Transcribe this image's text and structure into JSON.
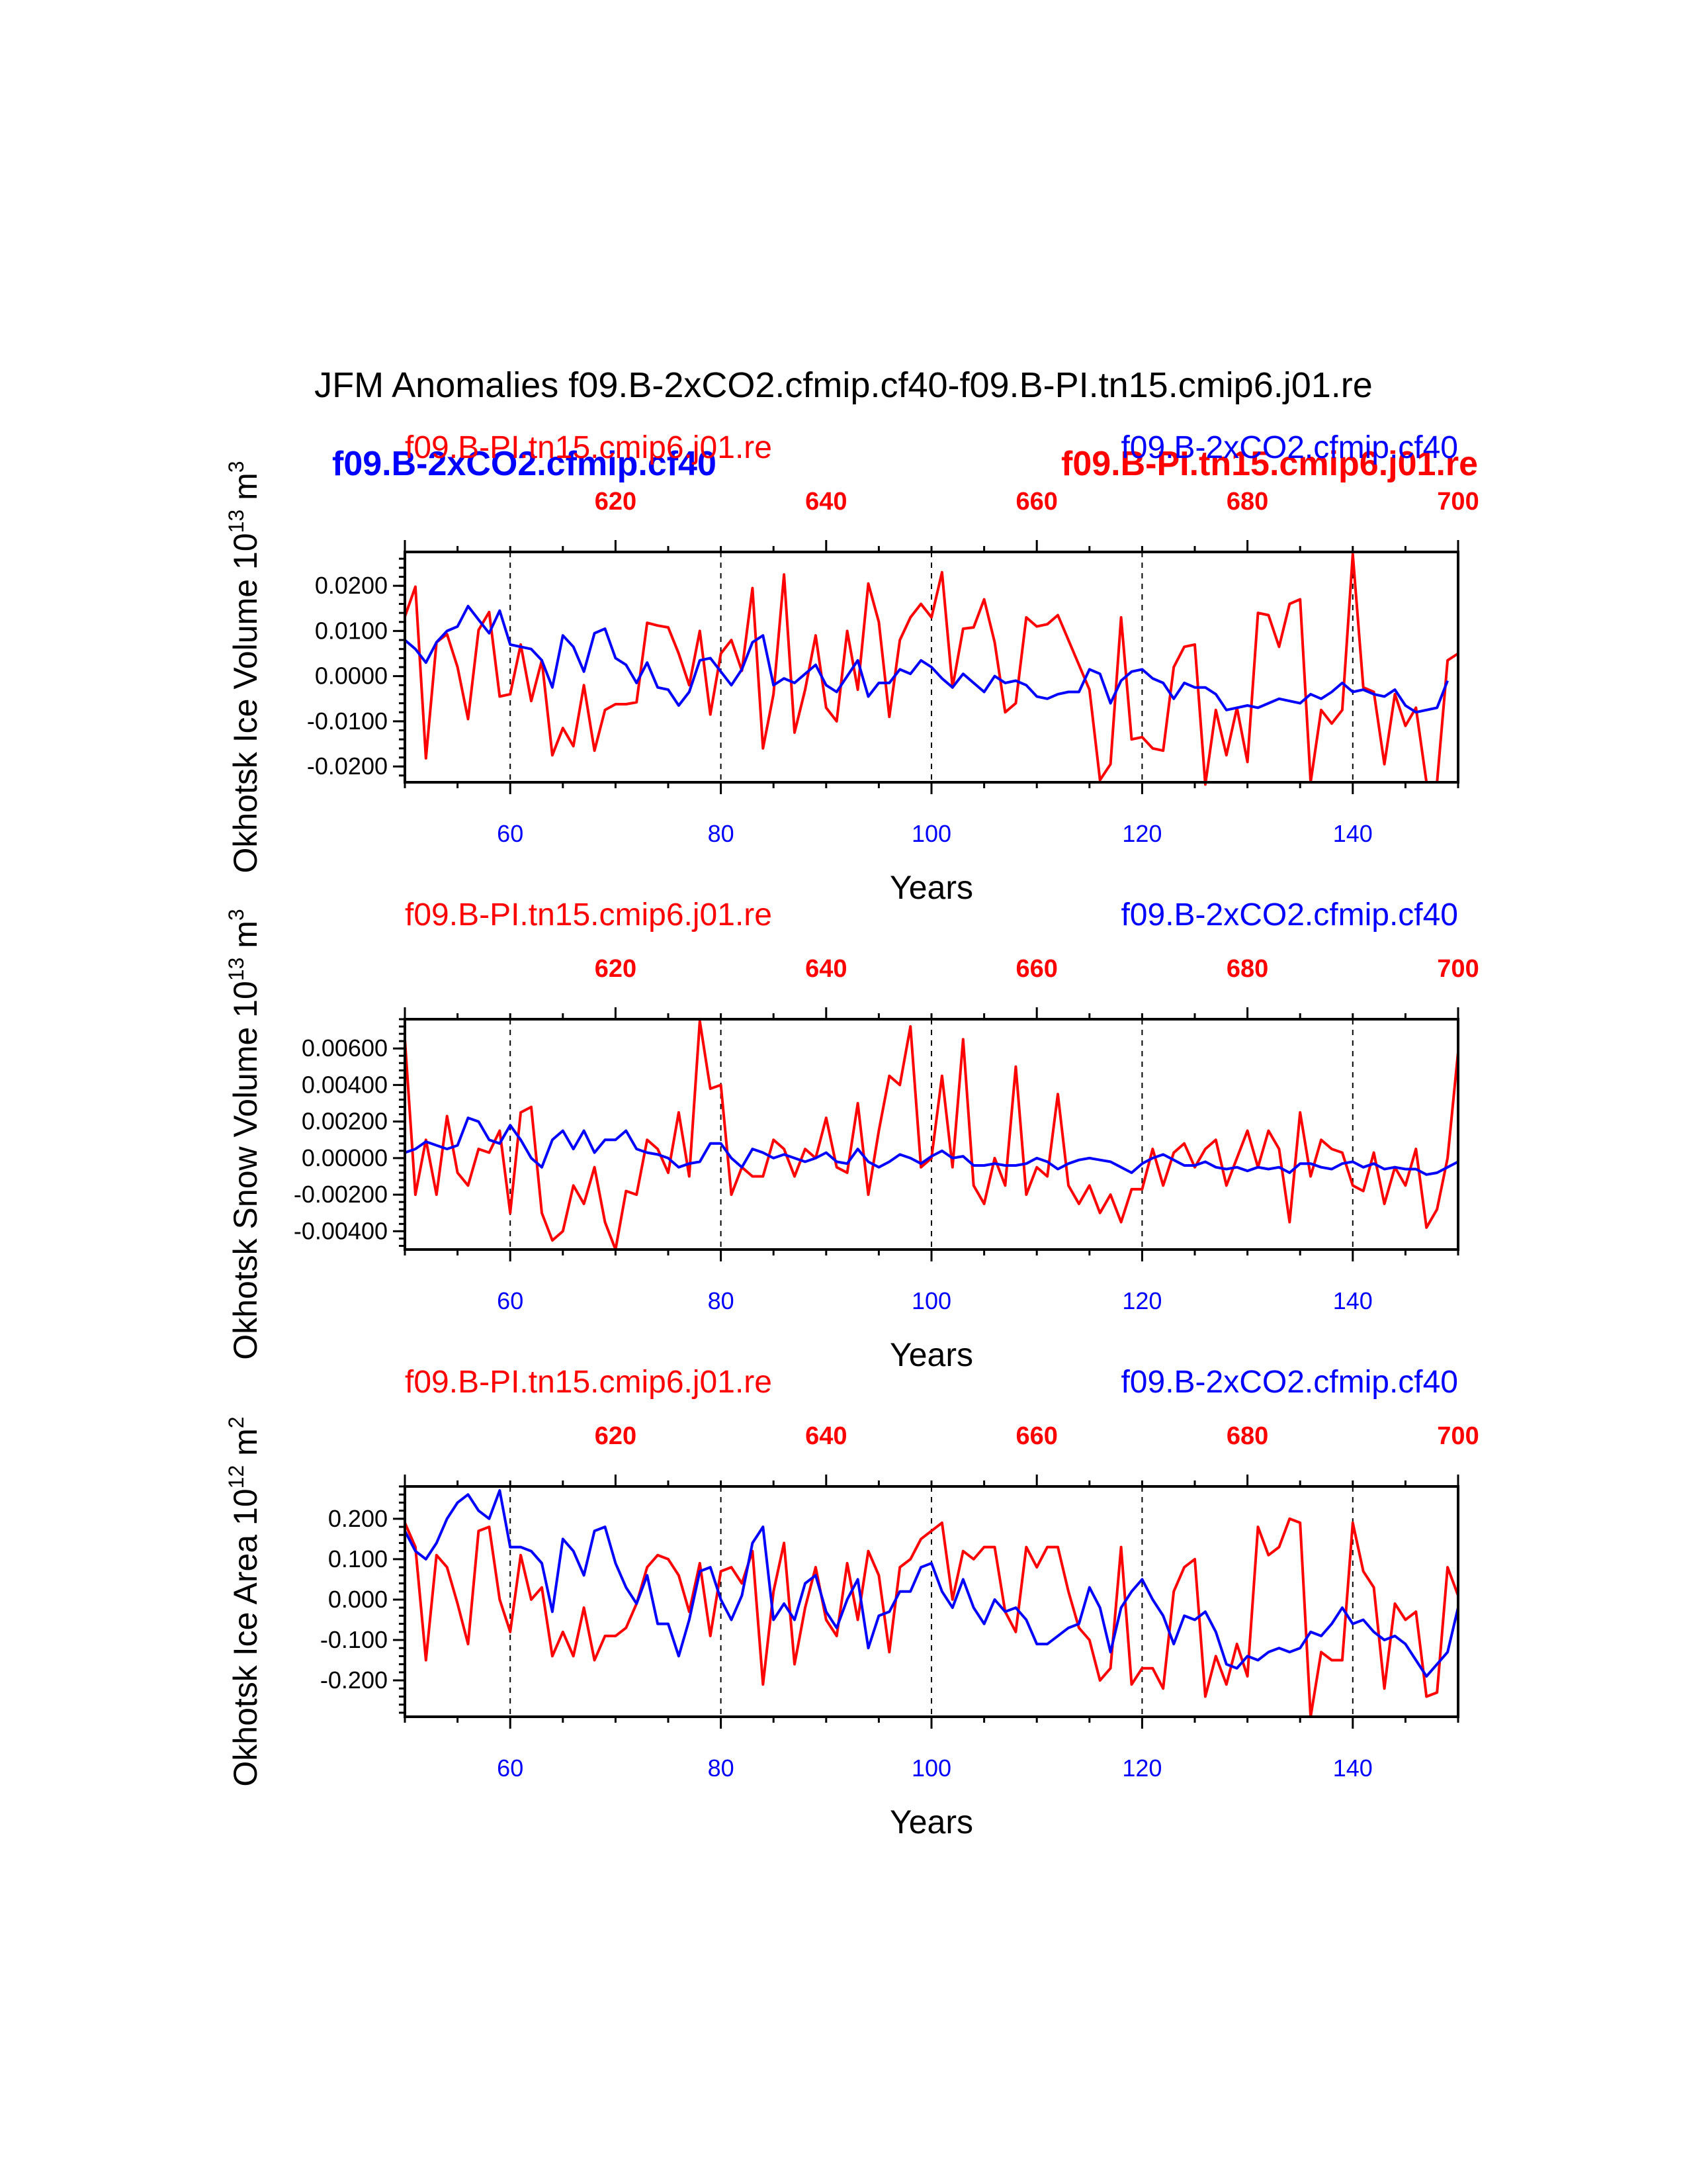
{
  "figure": {
    "title": "JFM Anomalies f09.B-2xCO2.cfmip.cf40-f09.B-PI.tn15.cmip6.j01.re",
    "extra_labels": {
      "blue_bold": "f09.B-2xCO2.cfmip.cf40",
      "red_bold": "f09.B-PI.tn15.cmip6.j01.re"
    }
  },
  "colors": {
    "pi": "#ff0000",
    "co2": "#0000ff",
    "axis": "#000000"
  },
  "chart_data": [
    {
      "type": "line",
      "name": "ice-volume",
      "title_left": "f09.B-PI.tn15.cmip6.j01.re",
      "title_right": "f09.B-2xCO2.cfmip.cf40",
      "ylabel_main": "Okhotsk Ice Volume 10",
      "ylabel_exp1": "13",
      "ylabel_unit": " m",
      "ylabel_exp2": "3",
      "xlabel": "Years",
      "xlim": [
        50,
        150
      ],
      "xlim_top": [
        600,
        700
      ],
      "ylim": [
        -0.0235,
        0.0275
      ],
      "yticks": [
        -0.02,
        -0.01,
        0.0,
        0.01,
        0.02
      ],
      "ytick_labels": [
        "-0.0200",
        "-0.0100",
        "0.0000",
        "0.0100",
        "0.0200"
      ],
      "xticks_bottom": [
        60,
        80,
        100,
        120,
        140
      ],
      "xtick_bottom_labels": [
        "60",
        "80",
        "100",
        "120",
        "140"
      ],
      "xticks_top": [
        620,
        640,
        660,
        680,
        700
      ],
      "xtick_top_labels": [
        "620",
        "640",
        "660",
        "680",
        "700"
      ],
      "vlines": [
        60,
        80,
        100,
        120,
        140
      ],
      "x_start": 50,
      "series": [
        {
          "name": "f09.B-PI.tn15.cmip6.j01.re",
          "color": "#ff0000",
          "values": [
            0.0132,
            0.0198,
            -0.0182,
            0.0075,
            0.0093,
            0.002,
            -0.0095,
            0.0102,
            0.0142,
            -0.0045,
            -0.004,
            0.007,
            -0.0055,
            0.0035,
            -0.0175,
            -0.0115,
            -0.0155,
            -0.002,
            -0.0165,
            -0.0075,
            -0.0062,
            -0.0062,
            -0.0058,
            0.0118,
            0.0112,
            0.0108,
            0.005,
            -0.002,
            0.01,
            -0.0085,
            0.005,
            0.008,
            0.0012,
            0.0195,
            -0.016,
            -0.004,
            0.0225,
            -0.0125,
            -0.003,
            0.009,
            -0.007,
            -0.01,
            0.01,
            -0.003,
            0.0205,
            0.012,
            -0.009,
            0.008,
            0.013,
            0.016,
            0.013,
            0.023,
            -0.0025,
            0.0105,
            0.0108,
            0.017,
            0.0075,
            -0.008,
            -0.006,
            0.013,
            0.011,
            0.0115,
            0.0135,
            0.008,
            0.0025,
            -0.003,
            -0.023,
            -0.0195,
            0.013,
            -0.014,
            -0.0135,
            -0.016,
            -0.0165,
            0.002,
            0.0065,
            0.007,
            -0.024,
            -0.0075,
            -0.0175,
            -0.007,
            -0.019,
            0.014,
            0.0135,
            0.0065,
            0.016,
            0.017,
            -0.0235,
            -0.0075,
            -0.0105,
            -0.0075,
            0.027,
            -0.0025,
            -0.0035,
            -0.0195,
            -0.004,
            -0.011,
            -0.007,
            -0.0235,
            -0.0235,
            0.0035,
            0.005
          ]
        },
        {
          "name": "f09.B-2xCO2.cfmip.cf40",
          "color": "#0000ff",
          "values": [
            0.008,
            0.006,
            0.003,
            0.0075,
            0.01,
            0.011,
            0.0155,
            0.0125,
            0.0095,
            0.0145,
            0.007,
            0.0065,
            0.006,
            0.0035,
            -0.0025,
            0.009,
            0.0065,
            0.001,
            0.0095,
            0.0105,
            0.004,
            0.0025,
            -0.0015,
            0.003,
            -0.0025,
            -0.003,
            -0.0065,
            -0.0035,
            0.0035,
            0.004,
            0.001,
            -0.002,
            0.0015,
            0.0075,
            0.009,
            -0.002,
            -0.0005,
            -0.0015,
            0.0005,
            0.0025,
            -0.002,
            -0.0035,
            0.0,
            0.0035,
            -0.0045,
            -0.0015,
            -0.0015,
            0.0015,
            0.0005,
            0.0035,
            0.002,
            -0.0005,
            -0.0025,
            0.0005,
            -0.0015,
            -0.0035,
            0.0,
            -0.0015,
            -0.001,
            -0.002,
            -0.0045,
            -0.005,
            -0.004,
            -0.0035,
            -0.0035,
            0.0015,
            0.0005,
            -0.006,
            -0.001,
            0.001,
            0.0015,
            -0.0005,
            -0.0015,
            -0.005,
            -0.0015,
            -0.0025,
            -0.0025,
            -0.004,
            -0.0075,
            -0.007,
            -0.0065,
            -0.007,
            -0.006,
            -0.005,
            -0.0055,
            -0.006,
            -0.004,
            -0.005,
            -0.0035,
            -0.0015,
            -0.0035,
            -0.003,
            -0.004,
            -0.0045,
            -0.003,
            -0.0065,
            -0.008,
            -0.0075,
            -0.007,
            -0.001
          ]
        }
      ]
    },
    {
      "type": "line",
      "name": "snow-volume",
      "title_left": "f09.B-PI.tn15.cmip6.j01.re",
      "title_right": "f09.B-2xCO2.cfmip.cf40",
      "ylabel_main": "Okhotsk Snow Volume 10",
      "ylabel_exp1": "13",
      "ylabel_unit": " m",
      "ylabel_exp2": "3",
      "xlabel": "Years",
      "xlim": [
        50,
        150
      ],
      "xlim_top": [
        600,
        700
      ],
      "ylim": [
        -0.005,
        0.0076
      ],
      "yticks": [
        -0.004,
        -0.002,
        0.0,
        0.002,
        0.004,
        0.006
      ],
      "ytick_labels": [
        "-0.00400",
        "-0.00200",
        "0.00000",
        "0.00200",
        "0.00400",
        "0.00600"
      ],
      "xticks_bottom": [
        60,
        80,
        100,
        120,
        140
      ],
      "xtick_bottom_labels": [
        "60",
        "80",
        "100",
        "120",
        "140"
      ],
      "xticks_top": [
        620,
        640,
        660,
        680,
        700
      ],
      "xtick_top_labels": [
        "620",
        "640",
        "660",
        "680",
        "700"
      ],
      "vlines": [
        60,
        80,
        100,
        120,
        140
      ],
      "x_start": 50,
      "series": [
        {
          "name": "f09.B-PI.tn15.cmip6.j01.re",
          "color": "#ff0000",
          "values": [
            0.0065,
            -0.002,
            0.001,
            -0.002,
            0.0023,
            -0.0008,
            -0.0015,
            0.0005,
            0.0003,
            0.0015,
            -0.003,
            0.0025,
            0.0028,
            -0.003,
            -0.0045,
            -0.004,
            -0.0015,
            -0.0025,
            -0.0005,
            -0.0035,
            -0.005,
            -0.0018,
            -0.002,
            0.001,
            0.0005,
            -0.0008,
            0.0025,
            -0.001,
            0.0075,
            0.0038,
            0.004,
            -0.002,
            -0.0005,
            -0.001,
            -0.001,
            0.001,
            0.0005,
            -0.001,
            0.0005,
            0.0,
            0.0022,
            -0.0005,
            -0.0008,
            0.003,
            -0.002,
            0.0015,
            0.0045,
            0.004,
            0.0072,
            -0.0005,
            0.0,
            0.0045,
            -0.0005,
            0.0065,
            -0.0015,
            -0.0025,
            0.0,
            -0.0015,
            0.005,
            -0.002,
            -0.0005,
            -0.001,
            0.0035,
            -0.0015,
            -0.0025,
            -0.0015,
            -0.003,
            -0.002,
            -0.0035,
            -0.0017,
            -0.0017,
            0.0005,
            -0.0015,
            0.0003,
            0.0008,
            -0.0005,
            0.0005,
            0.001,
            -0.0015,
            0.0,
            0.0015,
            -0.0005,
            0.0015,
            0.0005,
            -0.0035,
            0.0025,
            -0.001,
            0.001,
            0.0005,
            0.0003,
            -0.0015,
            -0.0018,
            0.0003,
            -0.0025,
            -0.0005,
            -0.0015,
            0.0005,
            -0.0038,
            -0.0028,
            0.0,
            0.0058
          ]
        },
        {
          "name": "f09.B-2xCO2.cfmip.cf40",
          "color": "#0000ff",
          "values": [
            0.0003,
            0.0005,
            0.0009,
            0.0007,
            0.0005,
            0.0007,
            0.0022,
            0.002,
            0.001,
            0.0008,
            0.0018,
            0.001,
            0.0,
            -0.0005,
            0.001,
            0.0015,
            0.0005,
            0.0015,
            0.0003,
            0.001,
            0.001,
            0.0015,
            0.0005,
            0.0003,
            0.0002,
            0.0,
            -0.0005,
            -0.0003,
            -0.0002,
            0.0008,
            0.0008,
            0.0,
            -0.0005,
            0.0005,
            0.0003,
            0.0,
            0.0002,
            0.0,
            -0.0002,
            0.0,
            0.0003,
            -0.0002,
            -0.0003,
            0.0005,
            -0.0002,
            -0.0005,
            -0.0002,
            0.0002,
            0.0,
            -0.0003,
            0.0001,
            0.0004,
            0.0,
            0.0001,
            -0.0004,
            -0.0004,
            -0.0003,
            -0.0004,
            -0.0004,
            -0.0003,
            0.0,
            -0.0002,
            -0.0006,
            -0.0003,
            -0.0001,
            0.0,
            -0.0001,
            -0.0002,
            -0.0005,
            -0.0008,
            -0.0003,
            0.0,
            0.0002,
            -0.0001,
            -0.0004,
            -0.0004,
            -0.0002,
            -0.0005,
            -0.0006,
            -0.0005,
            -0.0007,
            -0.0005,
            -0.0006,
            -0.0005,
            -0.0008,
            -0.0003,
            -0.0003,
            -0.0005,
            -0.0006,
            -0.0003,
            -0.0002,
            -0.0005,
            -0.0003,
            -0.0006,
            -0.0005,
            -0.0006,
            -0.0006,
            -0.0009,
            -0.0008,
            -0.0005,
            -0.0002
          ]
        }
      ]
    },
    {
      "type": "line",
      "name": "ice-area",
      "title_left": "f09.B-PI.tn15.cmip6.j01.re",
      "title_right": "f09.B-2xCO2.cfmip.cf40",
      "ylabel_main": "Okhotsk Ice Area 10",
      "ylabel_exp1": "12",
      "ylabel_unit": " m",
      "ylabel_exp2": "2",
      "xlabel": "Years",
      "xlim": [
        50,
        150
      ],
      "xlim_top": [
        600,
        700
      ],
      "ylim": [
        -0.29,
        0.28
      ],
      "yticks": [
        -0.2,
        -0.1,
        0.0,
        0.1,
        0.2
      ],
      "ytick_labels": [
        "-0.200",
        "-0.100",
        "0.000",
        "0.100",
        "0.200"
      ],
      "xticks_bottom": [
        60,
        80,
        100,
        120,
        140
      ],
      "xtick_bottom_labels": [
        "60",
        "80",
        "100",
        "120",
        "140"
      ],
      "xticks_top": [
        620,
        640,
        660,
        680,
        700
      ],
      "xtick_top_labels": [
        "620",
        "640",
        "660",
        "680",
        "700"
      ],
      "vlines": [
        60,
        80,
        100,
        120,
        140
      ],
      "x_start": 50,
      "series": [
        {
          "name": "f09.B-PI.tn15.cmip6.j01.re",
          "color": "#ff0000",
          "values": [
            0.19,
            0.13,
            -0.15,
            0.11,
            0.08,
            -0.01,
            -0.11,
            0.17,
            0.18,
            0.0,
            -0.08,
            0.11,
            0.0,
            0.03,
            -0.14,
            -0.08,
            -0.14,
            -0.02,
            -0.15,
            -0.09,
            -0.09,
            -0.07,
            -0.01,
            0.08,
            0.11,
            0.1,
            0.06,
            -0.03,
            0.09,
            -0.09,
            0.07,
            0.08,
            0.04,
            0.12,
            -0.21,
            0.02,
            0.14,
            -0.16,
            -0.02,
            0.08,
            -0.05,
            -0.09,
            0.09,
            -0.05,
            0.12,
            0.06,
            -0.13,
            0.08,
            0.1,
            0.15,
            0.17,
            0.19,
            0.0,
            0.12,
            0.1,
            0.13,
            0.13,
            -0.03,
            -0.08,
            0.13,
            0.08,
            0.13,
            0.13,
            0.02,
            -0.07,
            -0.1,
            -0.2,
            -0.17,
            0.13,
            -0.21,
            -0.17,
            -0.17,
            -0.22,
            0.02,
            0.08,
            0.1,
            -0.24,
            -0.14,
            -0.21,
            -0.11,
            -0.19,
            0.18,
            0.11,
            0.13,
            0.2,
            0.19,
            -0.29,
            -0.13,
            -0.15,
            -0.15,
            0.19,
            0.07,
            0.03,
            -0.22,
            -0.01,
            -0.05,
            -0.03,
            -0.24,
            -0.23,
            0.08,
            0.01
          ]
        },
        {
          "name": "f09.B-2xCO2.cfmip.cf40",
          "color": "#0000ff",
          "values": [
            0.17,
            0.12,
            0.1,
            0.14,
            0.2,
            0.24,
            0.26,
            0.22,
            0.2,
            0.27,
            0.13,
            0.13,
            0.12,
            0.09,
            -0.03,
            0.15,
            0.12,
            0.06,
            0.17,
            0.18,
            0.09,
            0.03,
            -0.01,
            0.06,
            -0.06,
            -0.06,
            -0.14,
            -0.05,
            0.07,
            0.08,
            0.0,
            -0.05,
            0.01,
            0.14,
            0.18,
            -0.05,
            -0.01,
            -0.05,
            0.04,
            0.06,
            -0.03,
            -0.07,
            0.0,
            0.05,
            -0.12,
            -0.04,
            -0.03,
            0.02,
            0.02,
            0.08,
            0.09,
            0.02,
            -0.02,
            0.05,
            -0.02,
            -0.06,
            0.0,
            -0.03,
            -0.02,
            -0.05,
            -0.11,
            -0.11,
            -0.09,
            -0.07,
            -0.06,
            0.03,
            -0.02,
            -0.13,
            -0.02,
            0.02,
            0.05,
            0.0,
            -0.04,
            -0.11,
            -0.04,
            -0.05,
            -0.03,
            -0.08,
            -0.16,
            -0.17,
            -0.14,
            -0.15,
            -0.13,
            -0.12,
            -0.13,
            -0.12,
            -0.08,
            -0.09,
            -0.06,
            -0.02,
            -0.06,
            -0.05,
            -0.08,
            -0.1,
            -0.09,
            -0.11,
            -0.15,
            -0.19,
            -0.16,
            -0.13,
            -0.02
          ]
        }
      ]
    }
  ]
}
